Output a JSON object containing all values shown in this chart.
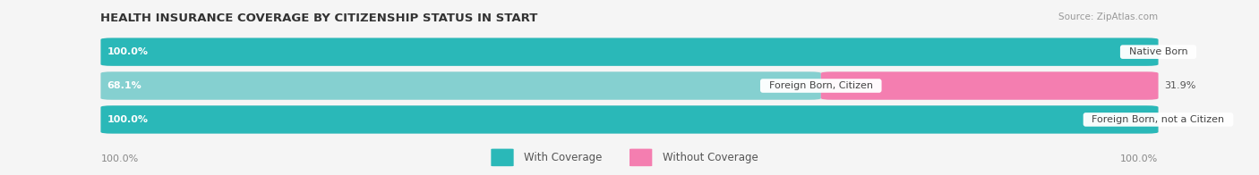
{
  "title": "HEALTH INSURANCE COVERAGE BY CITIZENSHIP STATUS IN START",
  "source": "Source: ZipAtlas.com",
  "categories": [
    "Native Born",
    "Foreign Born, Citizen",
    "Foreign Born, not a Citizen"
  ],
  "with_coverage": [
    100.0,
    68.1,
    100.0
  ],
  "without_coverage": [
    0.0,
    31.9,
    0.0
  ],
  "color_with": "#2ab8b8",
  "color_without": "#f47eb0",
  "color_with_light": "#85d0d0",
  "color_bg_bar": "#e8e8e8",
  "bg_color": "#f5f5f5",
  "text_white": "#ffffff",
  "text_dark": "#555555",
  "text_label": "#888888",
  "title_color": "#333333",
  "legend_label_with": "With Coverage",
  "legend_label_without": "Without Coverage",
  "bar_total": 100,
  "bar_height": 0.62,
  "rounding": 5,
  "left_label": "100.0%",
  "right_label": "100.0%",
  "title_fontsize": 9.5,
  "source_fontsize": 7.5,
  "bar_label_fontsize": 8,
  "cat_label_fontsize": 8,
  "legend_fontsize": 8.5
}
